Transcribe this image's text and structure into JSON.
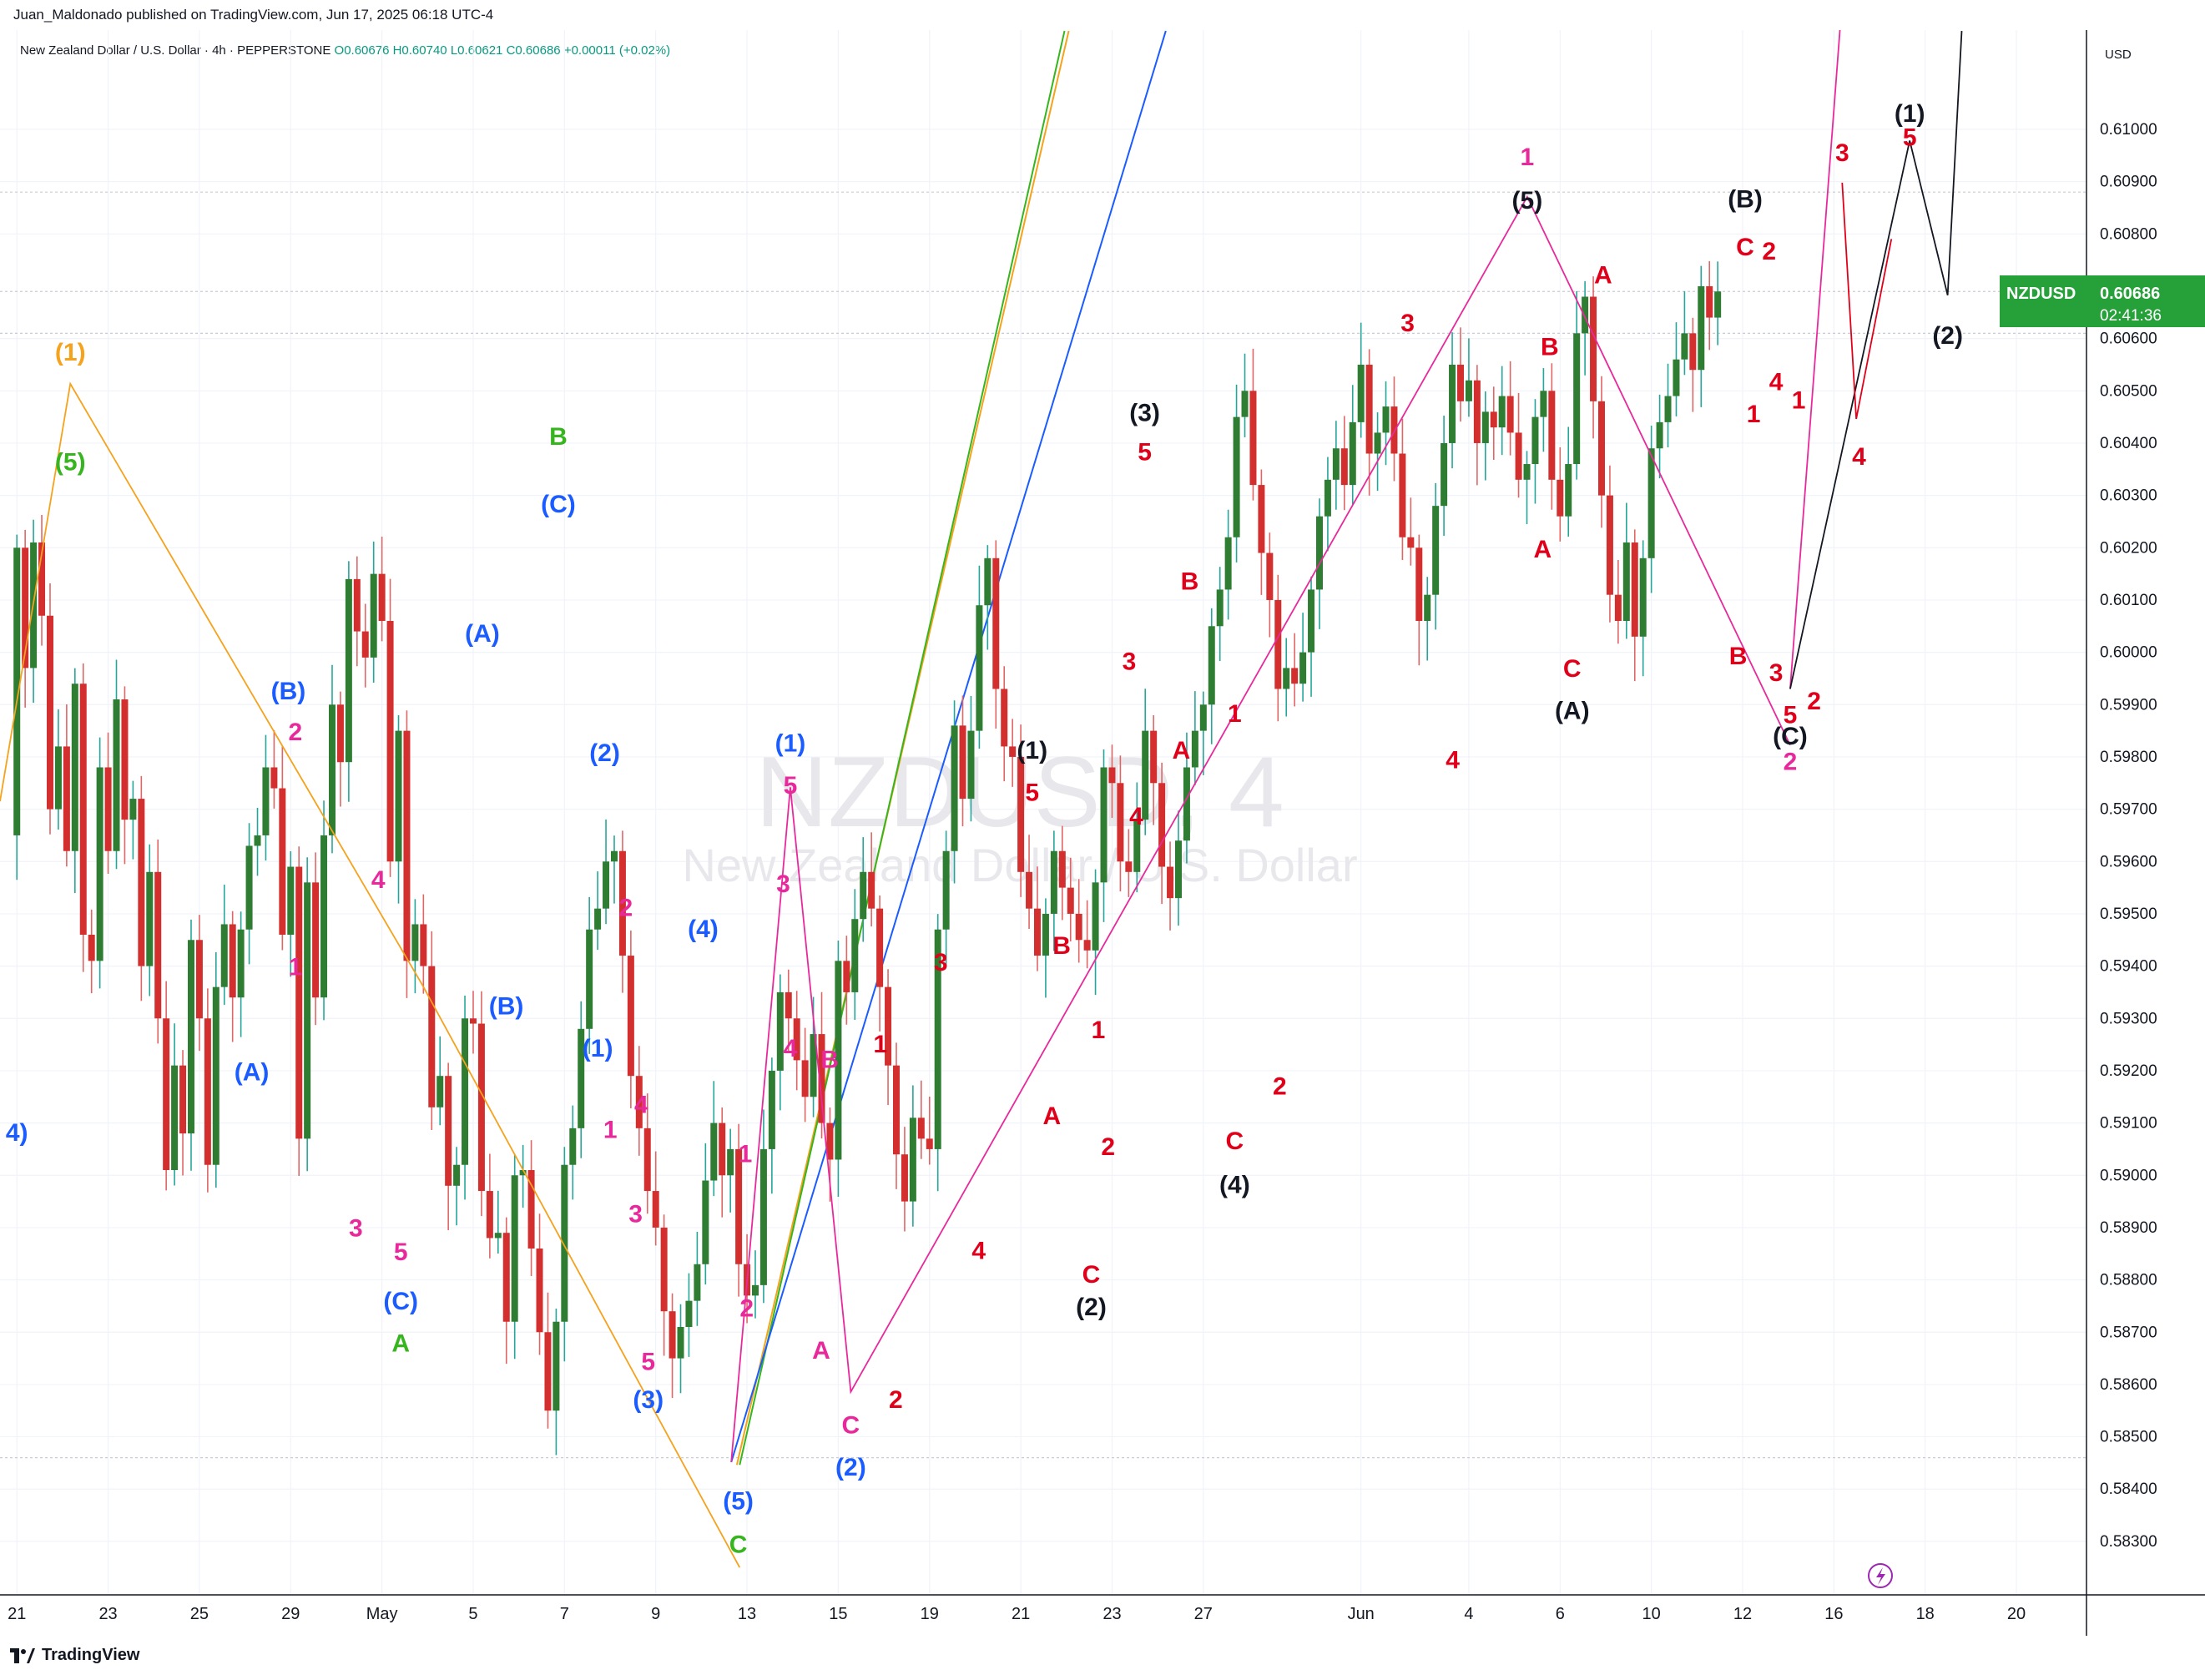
{
  "header": {
    "publisher": "Juan_Maldonado published on TradingView.com, Jun 17, 2025 06:18 UTC-4"
  },
  "legend": {
    "symbol_desc": "New Zealand Dollar / U.S. Dollar · 4h · PEPPERSTONE",
    "open": "O0.60676",
    "high": "H0.60740",
    "low": "L0.60621",
    "close": "C0.60686",
    "change": "+0.00011 (+0.02%)"
  },
  "watermark": {
    "symbol": "NZDUSD, 4",
    "description": "New Zealand Dollar / U.S. Dollar"
  },
  "price_axis": {
    "currency": "USD",
    "last_symbol": "NZDUSD",
    "last_price": "0.60686",
    "countdown": "02:41:36"
  },
  "footer": {
    "logo_text": "TradingView"
  },
  "colors": {
    "up": "#26a69a",
    "up_body": "#2e7d32",
    "down": "#d32f2f",
    "blue": "#1a5cff",
    "red": "#e0001a",
    "magenta": "#e8299b",
    "green": "#36b51f",
    "orange": "#f5a21c",
    "black": "#131722",
    "badge": "#26a13a"
  },
  "chart_data": {
    "type": "candlestick",
    "title": "NZDUSD, 4",
    "y_range": [
      0.582,
      0.6118
    ],
    "y_ticks": [
      "0.61000",
      "0.60900",
      "0.60800",
      "0.60600",
      "0.60500",
      "0.60400",
      "0.60300",
      "0.60200",
      "0.60100",
      "0.60000",
      "0.59900",
      "0.59800",
      "0.59700",
      "0.59600",
      "0.59500",
      "0.59400",
      "0.59300",
      "0.59200",
      "0.59100",
      "0.59000",
      "0.58900",
      "0.58800",
      "0.58700",
      "0.58600",
      "0.58500",
      "0.58400",
      "0.58300"
    ],
    "x_ticks": [
      {
        "label": "21",
        "idx": 0
      },
      {
        "label": "23",
        "idx": 11
      },
      {
        "label": "25",
        "idx": 22
      },
      {
        "label": "29",
        "idx": 33
      },
      {
        "label": "May",
        "idx": 44
      },
      {
        "label": "5",
        "idx": 55
      },
      {
        "label": "7",
        "idx": 66
      },
      {
        "label": "9",
        "idx": 77
      },
      {
        "label": "13",
        "idx": 88
      },
      {
        "label": "15",
        "idx": 99
      },
      {
        "label": "19",
        "idx": 110
      },
      {
        "label": "21",
        "idx": 121
      },
      {
        "label": "23",
        "idx": 132
      },
      {
        "label": "27",
        "idx": 143
      },
      {
        "label": "Jun",
        "idx": 162
      },
      {
        "label": "4",
        "idx": 175
      },
      {
        "label": "6",
        "idx": 186
      },
      {
        "label": "10",
        "idx": 197
      },
      {
        "label": "12",
        "idx": 208
      },
      {
        "label": "16",
        "idx": 219
      },
      {
        "label": "18",
        "idx": 230
      },
      {
        "label": "20",
        "idx": 241
      }
    ],
    "ohlc_path": [
      0.5965,
      0.602,
      0.5997,
      0.6021,
      0.6007,
      0.597,
      0.5982,
      0.5962,
      0.5994,
      0.5946,
      0.5941,
      0.5978,
      0.5962,
      0.5991,
      0.5968,
      0.5972,
      0.594,
      0.5958,
      0.593,
      0.5901,
      0.5921,
      0.5908,
      0.5945,
      0.593,
      0.5902,
      0.5936,
      0.5948,
      0.5934,
      0.5947,
      0.5963,
      0.5965,
      0.5978,
      0.5974,
      0.5946,
      0.5959,
      0.5907,
      0.5956,
      0.5934,
      0.5965,
      0.599,
      0.5979,
      0.6014,
      0.6004,
      0.5999,
      0.6015,
      0.6006,
      0.596,
      0.5985,
      0.5941,
      0.5948,
      0.594,
      0.5913,
      0.5919,
      0.5898,
      0.5902,
      0.593,
      0.5929,
      0.5897,
      0.5888,
      0.5889,
      0.5872,
      0.59,
      0.5901,
      0.5886,
      0.587,
      0.5855,
      0.5872,
      0.5902,
      0.5909,
      0.5928,
      0.5947,
      0.5951,
      0.596,
      0.5962,
      0.5942,
      0.5919,
      0.5909,
      0.5897,
      0.589,
      0.5874,
      0.5865,
      0.5871,
      0.5876,
      0.5883,
      0.5899,
      0.591,
      0.59,
      0.5905,
      0.5883,
      0.5877,
      0.5879,
      0.5905,
      0.592,
      0.5935,
      0.593,
      0.5922,
      0.5915,
      0.5927,
      0.591,
      0.5903,
      0.5941,
      0.5935,
      0.5949,
      0.5958,
      0.5951,
      0.5936,
      0.5921,
      0.5904,
      0.5895,
      0.5911,
      0.5907,
      0.5905,
      0.5947,
      0.5962,
      0.5986,
      0.5972,
      0.5985,
      0.6009,
      0.6018,
      0.5993,
      0.5982,
      0.598,
      0.5958,
      0.5951,
      0.5942,
      0.595,
      0.5962,
      0.5955,
      0.595,
      0.5945,
      0.5943,
      0.5956,
      0.5978,
      0.5975,
      0.596,
      0.5958,
      0.5968,
      0.5985,
      0.5975,
      0.5959,
      0.5953,
      0.5964,
      0.5978,
      0.5985,
      0.599,
      0.6005,
      0.6012,
      0.6022,
      0.6045,
      0.605,
      0.6032,
      0.6019,
      0.601,
      0.5993,
      0.5997,
      0.5994,
      0.6,
      0.6012,
      0.6026,
      0.6033,
      0.6039,
      0.6032,
      0.6044,
      0.6055,
      0.6038,
      0.6042,
      0.6047,
      0.6038,
      0.6022,
      0.602,
      0.6006,
      0.6011,
      0.6028,
      0.604,
      0.6055,
      0.6048,
      0.6052,
      0.604,
      0.6046,
      0.6043,
      0.6049,
      0.6042,
      0.6033,
      0.6036,
      0.6045,
      0.605,
      0.6033,
      0.6026,
      0.6036,
      0.6061,
      0.6068,
      0.6048,
      0.603,
      0.6011,
      0.6006,
      0.6021,
      0.6003,
      0.6018,
      0.6039,
      0.6044,
      0.6049,
      0.6056,
      0.6061,
      0.6054,
      0.607,
      0.6064,
      0.6069
    ],
    "annotations_note": "Elliott wave labels drawn on chart"
  },
  "wave_labels": [
    {
      "t": "(1)",
      "c": "orange",
      "x": 50,
      "y": 250
    },
    {
      "t": "(5)",
      "c": "green",
      "x": 50,
      "y": 328
    },
    {
      "t": "B",
      "c": "green",
      "x": 397,
      "y": 310
    },
    {
      "t": "(C)",
      "c": "blue",
      "x": 397,
      "y": 358
    },
    {
      "t": "(A)",
      "c": "blue",
      "x": 343,
      "y": 450
    },
    {
      "t": "(B)",
      "c": "blue",
      "x": 205,
      "y": 491
    },
    {
      "t": "2",
      "c": "magenta",
      "x": 210,
      "y": 520
    },
    {
      "t": "4",
      "c": "magenta",
      "x": 269,
      "y": 625
    },
    {
      "t": "1",
      "c": "magenta",
      "x": 210,
      "y": 687
    },
    {
      "t": "(A)",
      "c": "blue",
      "x": 179,
      "y": 762
    },
    {
      "t": "3",
      "c": "magenta",
      "x": 253,
      "y": 873
    },
    {
      "t": "5",
      "c": "magenta",
      "x": 285,
      "y": 890
    },
    {
      "t": "(C)",
      "c": "blue",
      "x": 285,
      "y": 925
    },
    {
      "t": "A",
      "c": "green",
      "x": 285,
      "y": 955
    },
    {
      "t": "4)",
      "c": "blue",
      "x": 12,
      "y": 805
    },
    {
      "t": "(2)",
      "c": "blue",
      "x": 430,
      "y": 535
    },
    {
      "t": "2",
      "c": "magenta",
      "x": 445,
      "y": 645
    },
    {
      "t": "(4)",
      "c": "blue",
      "x": 500,
      "y": 660
    },
    {
      "t": "(B)",
      "c": "blue",
      "x": 360,
      "y": 715
    },
    {
      "t": "(1)",
      "c": "blue",
      "x": 425,
      "y": 745
    },
    {
      "t": "1",
      "c": "magenta",
      "x": 434,
      "y": 803
    },
    {
      "t": "4",
      "c": "magenta",
      "x": 456,
      "y": 785
    },
    {
      "t": "3",
      "c": "magenta",
      "x": 452,
      "y": 863
    },
    {
      "t": "5",
      "c": "magenta",
      "x": 461,
      "y": 968
    },
    {
      "t": "(3)",
      "c": "blue",
      "x": 461,
      "y": 995
    },
    {
      "t": "(5)",
      "c": "blue",
      "x": 525,
      "y": 1067
    },
    {
      "t": "C",
      "c": "green",
      "x": 525,
      "y": 1098
    },
    {
      "t": "(1)",
      "c": "blue",
      "x": 562,
      "y": 528
    },
    {
      "t": "5",
      "c": "magenta",
      "x": 562,
      "y": 558
    },
    {
      "t": "3",
      "c": "magenta",
      "x": 557,
      "y": 628
    },
    {
      "t": "4",
      "c": "magenta",
      "x": 562,
      "y": 745
    },
    {
      "t": "B",
      "c": "magenta",
      "x": 590,
      "y": 753
    },
    {
      "t": "1",
      "c": "magenta",
      "x": 530,
      "y": 820
    },
    {
      "t": "2",
      "c": "magenta",
      "x": 531,
      "y": 930
    },
    {
      "t": "A",
      "c": "magenta",
      "x": 584,
      "y": 960
    },
    {
      "t": "C",
      "c": "magenta",
      "x": 605,
      "y": 1013
    },
    {
      "t": "(2)",
      "c": "blue",
      "x": 605,
      "y": 1043
    },
    {
      "t": "2",
      "c": "red",
      "x": 637,
      "y": 995
    },
    {
      "t": "1",
      "c": "red",
      "x": 626,
      "y": 742
    },
    {
      "t": "3",
      "c": "red",
      "x": 669,
      "y": 684
    },
    {
      "t": "4",
      "c": "red",
      "x": 696,
      "y": 889
    },
    {
      "t": "(1)",
      "c": "black",
      "x": 734,
      "y": 533
    },
    {
      "t": "5",
      "c": "red",
      "x": 734,
      "y": 563
    },
    {
      "t": "B",
      "c": "red",
      "x": 755,
      "y": 672
    },
    {
      "t": "1",
      "c": "red",
      "x": 781,
      "y": 732
    },
    {
      "t": "A",
      "c": "red",
      "x": 748,
      "y": 793
    },
    {
      "t": "2",
      "c": "red",
      "x": 788,
      "y": 815
    },
    {
      "t": "C",
      "c": "red",
      "x": 776,
      "y": 906
    },
    {
      "t": "(2)",
      "c": "black",
      "x": 776,
      "y": 929
    },
    {
      "t": "(3)",
      "c": "black",
      "x": 814,
      "y": 293
    },
    {
      "t": "5",
      "c": "red",
      "x": 814,
      "y": 321
    },
    {
      "t": "B",
      "c": "red",
      "x": 846,
      "y": 413
    },
    {
      "t": "3",
      "c": "red",
      "x": 803,
      "y": 470
    },
    {
      "t": "1",
      "c": "red",
      "x": 878,
      "y": 507
    },
    {
      "t": "A",
      "c": "red",
      "x": 840,
      "y": 533
    },
    {
      "t": "4",
      "c": "red",
      "x": 808,
      "y": 580
    },
    {
      "t": "2",
      "c": "red",
      "x": 910,
      "y": 772
    },
    {
      "t": "C",
      "c": "red",
      "x": 878,
      "y": 811
    },
    {
      "t": "(4)",
      "c": "black",
      "x": 878,
      "y": 842
    },
    {
      "t": "3",
      "c": "red",
      "x": 1001,
      "y": 229
    },
    {
      "t": "4",
      "c": "red",
      "x": 1033,
      "y": 540
    },
    {
      "t": "1",
      "c": "magenta",
      "x": 1086,
      "y": 111
    },
    {
      "t": "(5)",
      "c": "black",
      "x": 1086,
      "y": 142
    },
    {
      "t": "A",
      "c": "red",
      "x": 1140,
      "y": 195
    },
    {
      "t": "B",
      "c": "red",
      "x": 1102,
      "y": 246
    },
    {
      "t": "A",
      "c": "red",
      "x": 1097,
      "y": 390
    },
    {
      "t": "C",
      "c": "red",
      "x": 1118,
      "y": 475
    },
    {
      "t": "(A)",
      "c": "black",
      "x": 1118,
      "y": 505
    },
    {
      "t": "(B)",
      "c": "black",
      "x": 1241,
      "y": 141
    },
    {
      "t": "C",
      "c": "red",
      "x": 1241,
      "y": 175
    },
    {
      "t": "2",
      "c": "red",
      "x": 1258,
      "y": 178
    },
    {
      "t": "4",
      "c": "red",
      "x": 1263,
      "y": 271
    },
    {
      "t": "1",
      "c": "red",
      "x": 1279,
      "y": 284
    },
    {
      "t": "1",
      "c": "red",
      "x": 1247,
      "y": 294
    },
    {
      "t": "B",
      "c": "red",
      "x": 1236,
      "y": 466
    },
    {
      "t": "3",
      "c": "red",
      "x": 1263,
      "y": 478
    },
    {
      "t": "5",
      "c": "red",
      "x": 1273,
      "y": 508
    },
    {
      "t": "2",
      "c": "red",
      "x": 1290,
      "y": 498
    },
    {
      "t": "(C)",
      "c": "black",
      "x": 1273,
      "y": 523
    },
    {
      "t": "2",
      "c": "magenta",
      "x": 1273,
      "y": 541
    },
    {
      "t": "3",
      "c": "red",
      "x": 1310,
      "y": 108
    },
    {
      "t": "4",
      "c": "red",
      "x": 1322,
      "y": 324
    },
    {
      "t": "(1)",
      "c": "black",
      "x": 1358,
      "y": 80
    },
    {
      "t": "5",
      "c": "red",
      "x": 1358,
      "y": 97
    },
    {
      "t": "(2)",
      "c": "black",
      "x": 1385,
      "y": 238
    }
  ]
}
